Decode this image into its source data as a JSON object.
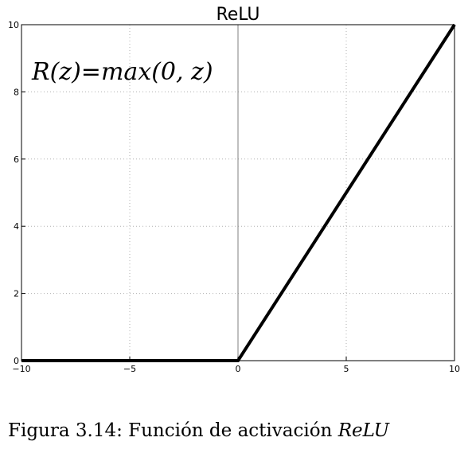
{
  "chart_data": {
    "type": "line",
    "title": "ReLU",
    "xlabel": "",
    "ylabel": "",
    "xlim": [
      -10,
      10
    ],
    "ylim": [
      0,
      10
    ],
    "xticks": [
      -10,
      -5,
      0,
      5,
      10
    ],
    "yticks": [
      0,
      2,
      4,
      6,
      8,
      10
    ],
    "xtick_labels": [
      "−10",
      "−5",
      "0",
      "5",
      "10"
    ],
    "ytick_labels": [
      "0",
      "2",
      "4",
      "6",
      "8",
      "10"
    ],
    "grid": true,
    "series": [
      {
        "x": [
          -10,
          0,
          10
        ],
        "y": [
          0,
          0,
          10
        ],
        "color": "#000000"
      }
    ],
    "annotation": "R(z)=max(0,  z)"
  },
  "caption": {
    "prefix": "Figura 3.14: Función de activación",
    "math": "ReLU"
  }
}
